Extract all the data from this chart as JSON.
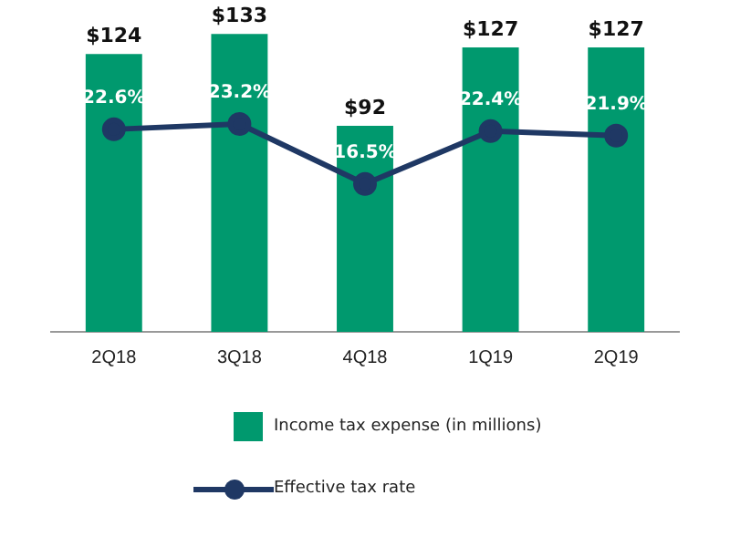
{
  "chart_data": {
    "type": "bar",
    "categories": [
      "2Q18",
      "3Q18",
      "4Q18",
      "1Q19",
      "2Q19"
    ],
    "series": [
      {
        "name": "Income tax expense (in millions)",
        "color": "#00996e",
        "values": [
          124,
          133,
          92,
          127,
          127
        ],
        "value_labels": [
          "$124",
          "$133",
          "$92",
          "$127",
          "$127"
        ]
      },
      {
        "name": "Effective tax rate",
        "type": "line",
        "axis": "y2",
        "color": "#1f3864",
        "values": [
          22.6,
          23.2,
          16.5,
          22.4,
          21.9
        ],
        "value_labels": [
          "22.6%",
          "23.2%",
          "16.5%",
          "22.4%",
          "21.9%"
        ]
      }
    ],
    "tick_labels": "x",
    "grid": false,
    "legend": "bottom",
    "marker": "circle",
    "line_style": "solid"
  }
}
